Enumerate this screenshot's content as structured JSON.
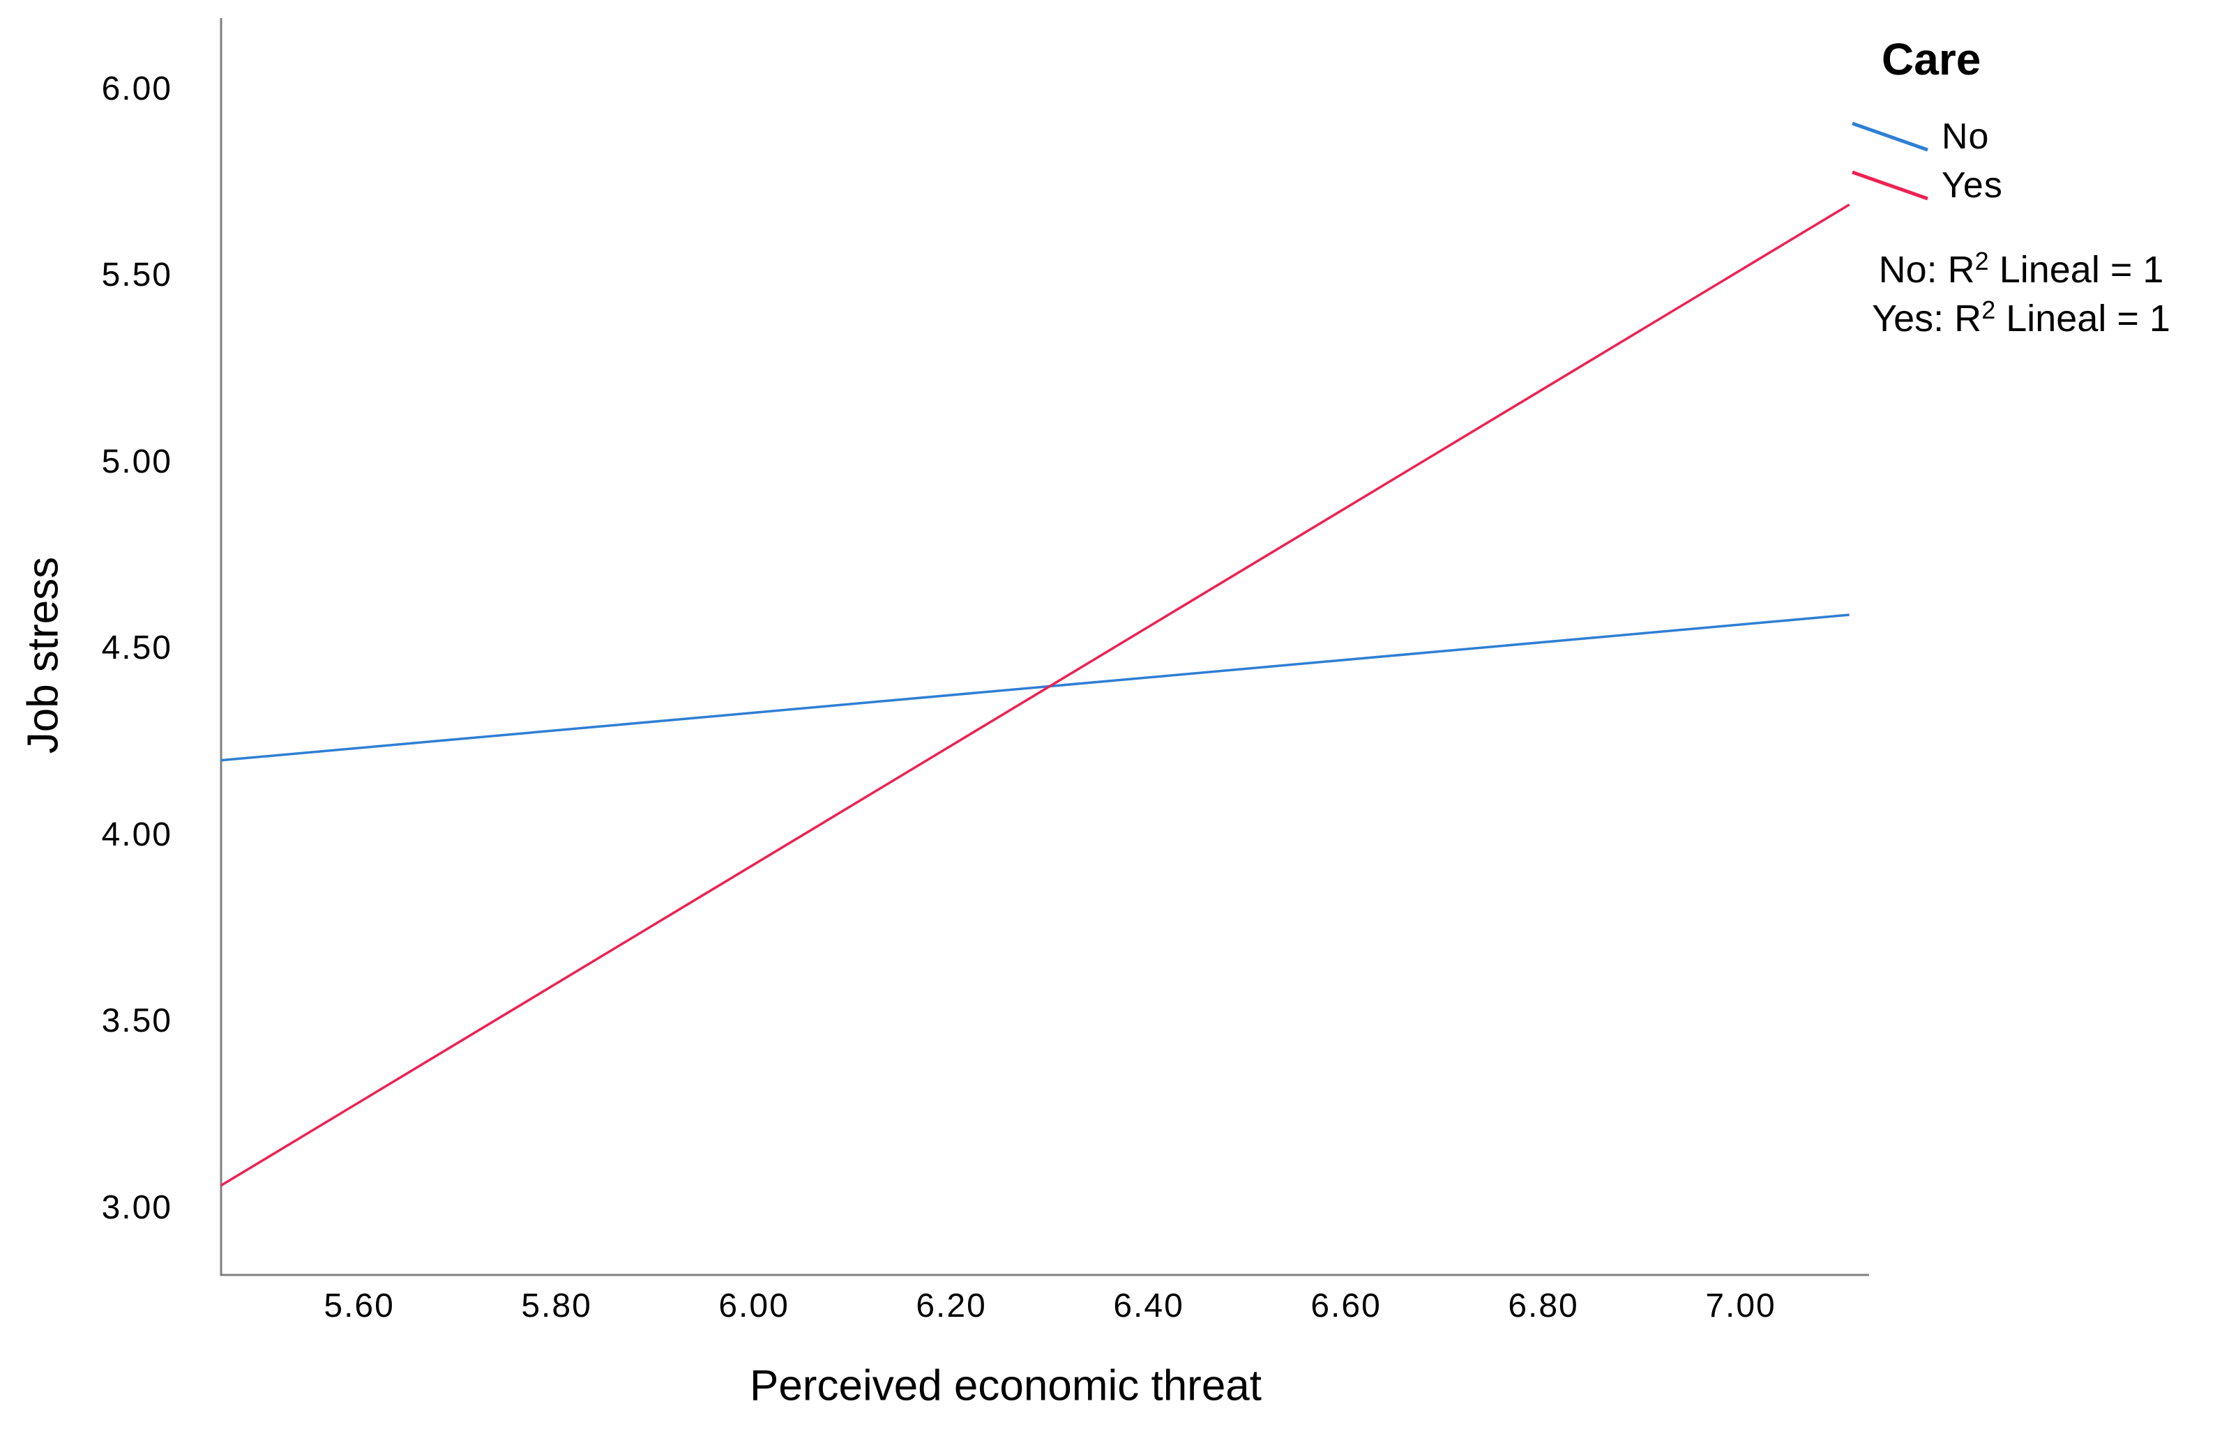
{
  "figure": {
    "background": "#ffffff",
    "axis_color": "#7f7f7f",
    "text_color": "#000000"
  },
  "chart_data": {
    "type": "line",
    "title": "",
    "xlabel": "Perceived economic threat",
    "ylabel": "Job stress",
    "xlim": [
      5.46,
      7.13
    ],
    "ylim": [
      2.82,
      6.19
    ],
    "grid": false,
    "x_ticks": {
      "values": [
        5.6,
        5.8,
        6.0,
        6.2,
        6.4,
        6.6,
        6.8,
        7.0
      ],
      "labels": [
        "5.60",
        "5.80",
        "6.00",
        "6.20",
        "6.40",
        "6.60",
        "6.80",
        "7.00"
      ]
    },
    "y_ticks": {
      "values": [
        3.0,
        3.5,
        4.0,
        4.5,
        5.0,
        5.5,
        6.0
      ],
      "labels": [
        "3.00",
        "3.50",
        "4.00",
        "4.50",
        "5.00",
        "5.50",
        "6.00"
      ]
    },
    "series": [
      {
        "name": "No",
        "color": "#2e7fd4",
        "x": [
          5.46,
          7.11
        ],
        "y": [
          4.2,
          4.59
        ]
      },
      {
        "name": "Yes",
        "color": "#ed2152",
        "x": [
          5.46,
          7.11
        ],
        "y": [
          3.06,
          5.69
        ]
      }
    ],
    "legend": {
      "title": "Care",
      "position": "top-right",
      "entries": [
        {
          "label": "No",
          "color": "#2e7fd4"
        },
        {
          "label": "Yes",
          "color": "#ed2152"
        }
      ]
    },
    "annotations": [
      {
        "prefix": "No: R",
        "sup": "2",
        "suffix": " Lineal = 1"
      },
      {
        "prefix": "Yes: R",
        "sup": "2",
        "suffix": " Lineal = 1"
      }
    ]
  }
}
